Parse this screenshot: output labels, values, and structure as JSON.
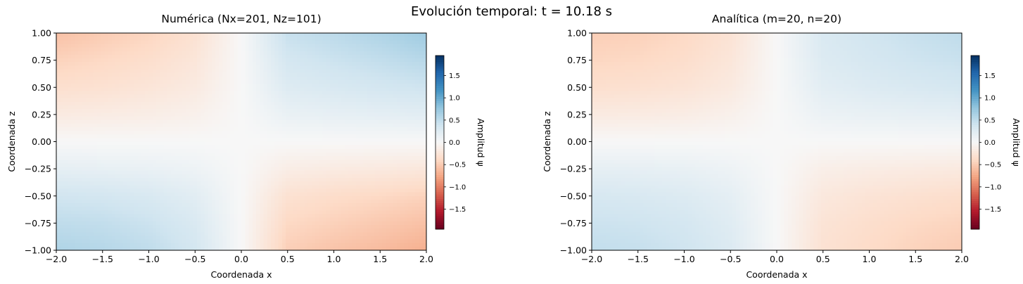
{
  "figure": {
    "suptitle": "Evolución temporal: t = 10.18 s"
  },
  "colormap": {
    "name": "RdBu",
    "stops": [
      "#67001f",
      "#b2182b",
      "#d6604d",
      "#f4a582",
      "#fddbc7",
      "#f7f7f7",
      "#d1e5f0",
      "#92c5de",
      "#4393c3",
      "#2166ac",
      "#053061"
    ]
  },
  "chart_data": [
    {
      "type": "heatmap",
      "title": "Numérica (Nx=201, Nz=101)",
      "xlabel": "Coordenada x",
      "ylabel": "Coordenada z",
      "xlim": [
        -2.0,
        2.0
      ],
      "ylim": [
        -1.0,
        1.0
      ],
      "xticks": [
        "−2.0",
        "−1.5",
        "−1.0",
        "−0.5",
        "0.0",
        "0.5",
        "1.0",
        "1.5",
        "2.0"
      ],
      "yticks": [
        "1.00",
        "0.75",
        "0.50",
        "0.25",
        "0.00",
        "−0.25",
        "−0.50",
        "−0.75",
        "−1.00"
      ],
      "colorbar": {
        "label": "Amplitud ψ",
        "range": [
          -1.95,
          1.95
        ],
        "ticks": [
          "1.5",
          "1.0",
          "0.5",
          "0.0",
          "−0.5",
          "−1.0",
          "−1.5"
        ]
      },
      "grid": {
        "nx": 201,
        "nz": 101
      },
      "z_values": {
        "x": [
          -2.0,
          -1.5,
          -1.0,
          -0.5,
          0.0,
          0.5,
          1.0,
          1.5,
          2.0
        ],
        "z": [
          1.0,
          0.75,
          0.5,
          0.25,
          0.0,
          -0.25,
          -0.5,
          -0.75,
          -1.0
        ],
        "rows": [
          [
            -0.58,
            -0.5,
            -0.43,
            -0.3,
            0.0,
            0.45,
            0.52,
            0.6,
            0.7
          ],
          [
            -0.45,
            -0.4,
            -0.34,
            -0.24,
            0.0,
            0.35,
            0.42,
            0.48,
            0.55
          ],
          [
            -0.33,
            -0.3,
            -0.25,
            -0.18,
            0.0,
            0.26,
            0.31,
            0.36,
            0.4
          ],
          [
            -0.18,
            -0.16,
            -0.14,
            -0.1,
            0.0,
            0.14,
            0.17,
            0.19,
            0.22
          ],
          [
            0.0,
            0.0,
            0.0,
            0.0,
            0.0,
            0.0,
            0.0,
            0.0,
            0.0
          ],
          [
            0.18,
            0.16,
            0.14,
            0.1,
            0.0,
            -0.14,
            -0.17,
            -0.19,
            -0.22
          ],
          [
            0.38,
            0.36,
            0.31,
            0.22,
            0.0,
            -0.3,
            -0.36,
            -0.4,
            -0.45
          ],
          [
            0.5,
            0.48,
            0.42,
            0.3,
            0.0,
            -0.4,
            -0.46,
            -0.52,
            -0.58
          ],
          [
            0.6,
            0.56,
            0.5,
            0.36,
            0.0,
            -0.48,
            -0.56,
            -0.62,
            -0.7
          ]
        ]
      }
    },
    {
      "type": "heatmap",
      "title": "Analítica (m=20, n=20)",
      "xlabel": "Coordenada x",
      "ylabel": "Coordenada z",
      "xlim": [
        -2.0,
        2.0
      ],
      "ylim": [
        -1.0,
        1.0
      ],
      "xticks": [
        "−2.0",
        "−1.5",
        "−1.0",
        "−0.5",
        "0.0",
        "0.5",
        "1.0",
        "1.5",
        "2.0"
      ],
      "yticks": [
        "1.00",
        "0.75",
        "0.50",
        "0.25",
        "0.00",
        "−0.25",
        "−0.50",
        "−0.75",
        "−1.00"
      ],
      "colorbar": {
        "label": "Amplitud ψ",
        "range": [
          -1.95,
          1.95
        ],
        "ticks": [
          "1.5",
          "1.0",
          "0.5",
          "0.0",
          "−0.5",
          "−1.0",
          "−1.5"
        ]
      },
      "grid": {
        "m": 20,
        "n": 20
      },
      "z_values": {
        "x": [
          -2.0,
          -1.5,
          -1.0,
          -0.5,
          0.0,
          0.5,
          1.0,
          1.5,
          2.0
        ],
        "z": [
          1.0,
          0.75,
          0.5,
          0.25,
          0.0,
          -0.25,
          -0.5,
          -0.75,
          -1.0
        ],
        "rows": [
          [
            -0.48,
            -0.46,
            -0.4,
            -0.28,
            0.0,
            0.3,
            0.38,
            0.45,
            0.5
          ],
          [
            -0.42,
            -0.4,
            -0.35,
            -0.24,
            0.0,
            0.27,
            0.34,
            0.4,
            0.44
          ],
          [
            -0.33,
            -0.31,
            -0.27,
            -0.19,
            0.0,
            0.21,
            0.27,
            0.31,
            0.35
          ],
          [
            -0.18,
            -0.17,
            -0.15,
            -0.1,
            0.0,
            0.12,
            0.15,
            0.17,
            0.19
          ],
          [
            0.0,
            0.0,
            0.0,
            0.0,
            0.0,
            0.0,
            0.0,
            0.0,
            0.0
          ],
          [
            0.18,
            0.17,
            0.15,
            0.1,
            0.0,
            -0.12,
            -0.15,
            -0.17,
            -0.19
          ],
          [
            0.33,
            0.31,
            0.27,
            0.19,
            0.0,
            -0.21,
            -0.27,
            -0.31,
            -0.35
          ],
          [
            0.42,
            0.4,
            0.35,
            0.24,
            0.0,
            -0.27,
            -0.34,
            -0.4,
            -0.44
          ],
          [
            0.48,
            0.46,
            0.4,
            0.28,
            0.0,
            -0.3,
            -0.38,
            -0.45,
            -0.5
          ]
        ]
      }
    }
  ]
}
